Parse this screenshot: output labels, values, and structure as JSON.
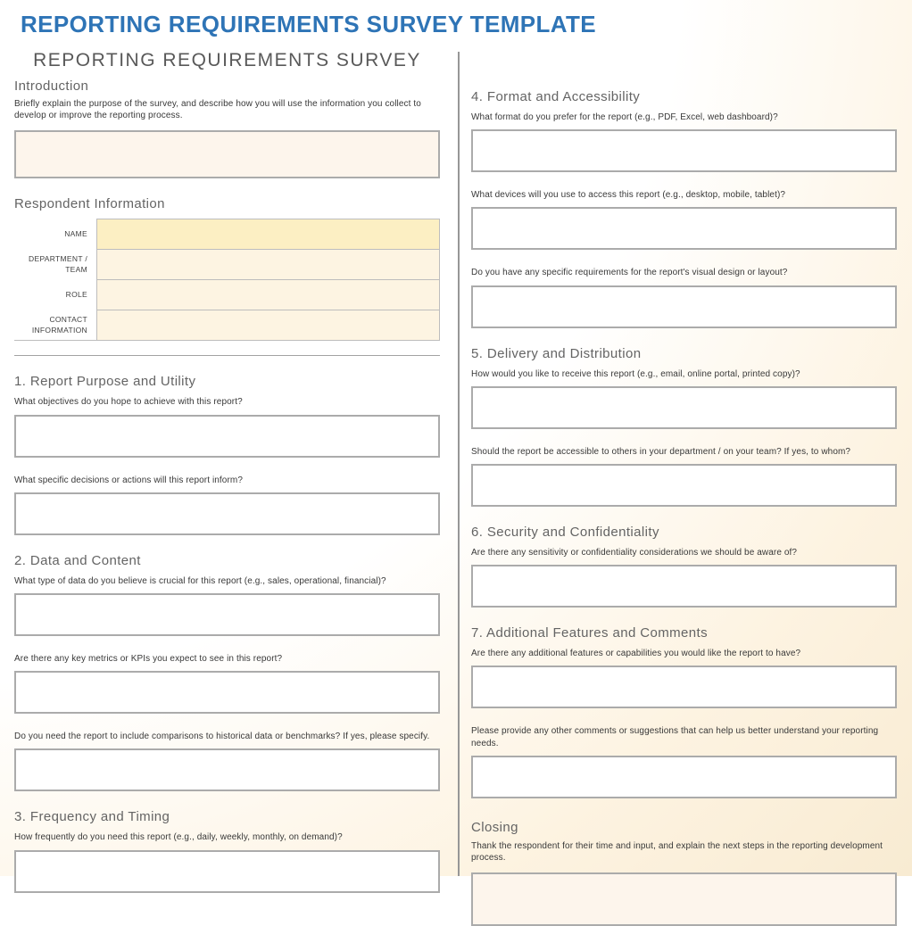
{
  "header": {
    "title": "REPORTING REQUIREMENTS SURVEY TEMPLATE",
    "subtitle": "REPORTING REQUIREMENTS SURVEY"
  },
  "colors": {
    "accent_blue": "#2e74b6",
    "heading_gray": "#646464",
    "field_yellow": "#fcefc3",
    "field_cream": "#fdf4e2",
    "panel_cream": "#fdf5ec",
    "box_border": "#ababab"
  },
  "intro": {
    "heading": "Introduction",
    "description": "Briefly explain the purpose of the survey, and describe how you will use the information you collect to develop or improve the reporting process.",
    "value": ""
  },
  "respondent": {
    "heading": "Respondent Information",
    "fields": [
      {
        "label": "NAME",
        "value": ""
      },
      {
        "label": "DEPARTMENT / TEAM",
        "value": ""
      },
      {
        "label": "ROLE",
        "value": ""
      },
      {
        "label": "CONTACT INFORMATION",
        "value": ""
      }
    ]
  },
  "sections": [
    {
      "heading": "1. Report Purpose and Utility",
      "questions": [
        {
          "text": "What objectives do you hope to achieve with this report?",
          "value": ""
        },
        {
          "text": "What specific decisions or actions will this report inform?",
          "value": ""
        }
      ]
    },
    {
      "heading": "2. Data and Content",
      "questions": [
        {
          "text": "What type of data do you believe is crucial for this report (e.g., sales, operational, financial)?",
          "value": ""
        },
        {
          "text": "Are there any key metrics or KPIs you expect to see in this report?",
          "value": ""
        },
        {
          "text": "Do you need the report to include comparisons to historical data or benchmarks? If yes, please specify.",
          "value": ""
        }
      ]
    },
    {
      "heading": "3. Frequency and Timing",
      "questions": [
        {
          "text": "How frequently do you need this report (e.g., daily, weekly, monthly, on demand)?",
          "value": ""
        }
      ]
    },
    {
      "heading": "4. Format and Accessibility",
      "questions": [
        {
          "text": "What format do you prefer for the report (e.g., PDF, Excel, web dashboard)?",
          "value": ""
        },
        {
          "text": "What devices will you use to access this report (e.g., desktop, mobile, tablet)?",
          "value": ""
        },
        {
          "text": "Do you have any specific requirements for the report's visual design or layout?",
          "value": ""
        }
      ]
    },
    {
      "heading": "5. Delivery and Distribution",
      "questions": [
        {
          "text": "How would you like to receive this report (e.g., email, online portal, printed copy)?",
          "value": ""
        },
        {
          "text": "Should the report be accessible to others in your department / on your team? If yes, to whom?",
          "value": ""
        }
      ]
    },
    {
      "heading": "6. Security and Confidentiality",
      "questions": [
        {
          "text": "Are there any sensitivity or confidentiality considerations we should be aware of?",
          "value": ""
        }
      ]
    },
    {
      "heading": "7. Additional Features and Comments",
      "questions": [
        {
          "text": "Are there any additional features or capabilities you would like the report to have?",
          "value": ""
        },
        {
          "text": "Please provide any other comments or suggestions that can help us better understand your reporting needs.",
          "value": ""
        }
      ]
    }
  ],
  "closing": {
    "heading": "Closing",
    "description": "Thank the respondent for their time and input, and explain the next steps in the reporting development process.",
    "value": ""
  }
}
